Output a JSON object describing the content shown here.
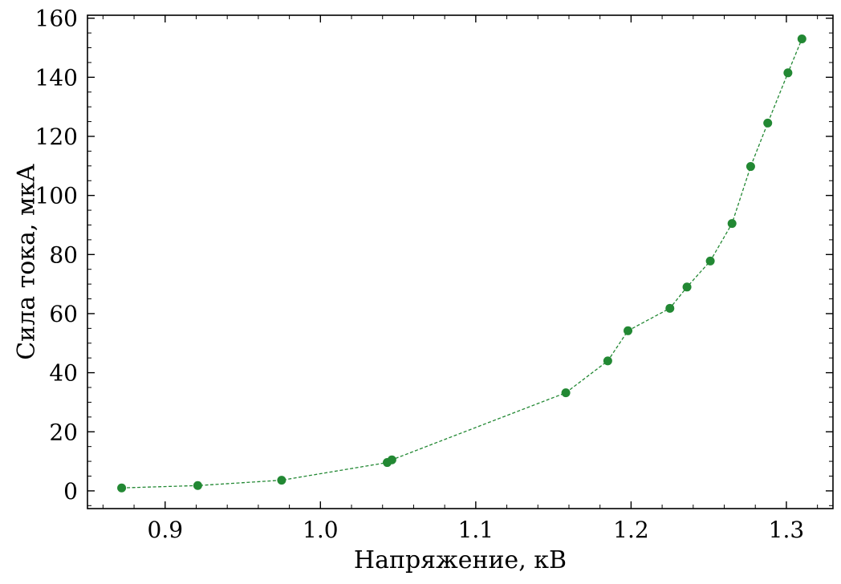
{
  "chart_data": {
    "type": "line",
    "title": "",
    "xlabel": "Напряжение, кВ",
    "ylabel": "Сила тока, мкА",
    "xlim": [
      0.85,
      1.33
    ],
    "ylim": [
      -6,
      161
    ],
    "x_ticks": [
      0.9,
      1.0,
      1.1,
      1.2,
      1.3
    ],
    "x_tick_labels": [
      "0.9",
      "1.0",
      "1.1",
      "1.2",
      "1.3"
    ],
    "y_ticks": [
      0,
      20,
      40,
      60,
      80,
      100,
      120,
      140,
      160
    ],
    "y_tick_labels": [
      "0",
      "20",
      "40",
      "60",
      "80",
      "100",
      "120",
      "140",
      "160"
    ],
    "grid": false,
    "legend": "none",
    "series": [
      {
        "color": "#228833",
        "line_style": "dashed",
        "marker": "circle",
        "x": [
          0.872,
          0.921,
          0.975,
          1.043,
          1.046,
          1.158,
          1.185,
          1.198,
          1.225,
          1.236,
          1.251,
          1.265,
          1.277,
          1.288,
          1.301,
          1.31
        ],
        "y": [
          1.0,
          1.8,
          3.6,
          9.6,
          10.5,
          33.2,
          44.0,
          54.2,
          61.8,
          69.0,
          77.8,
          90.5,
          109.8,
          124.5,
          141.5,
          153.0
        ]
      }
    ]
  }
}
